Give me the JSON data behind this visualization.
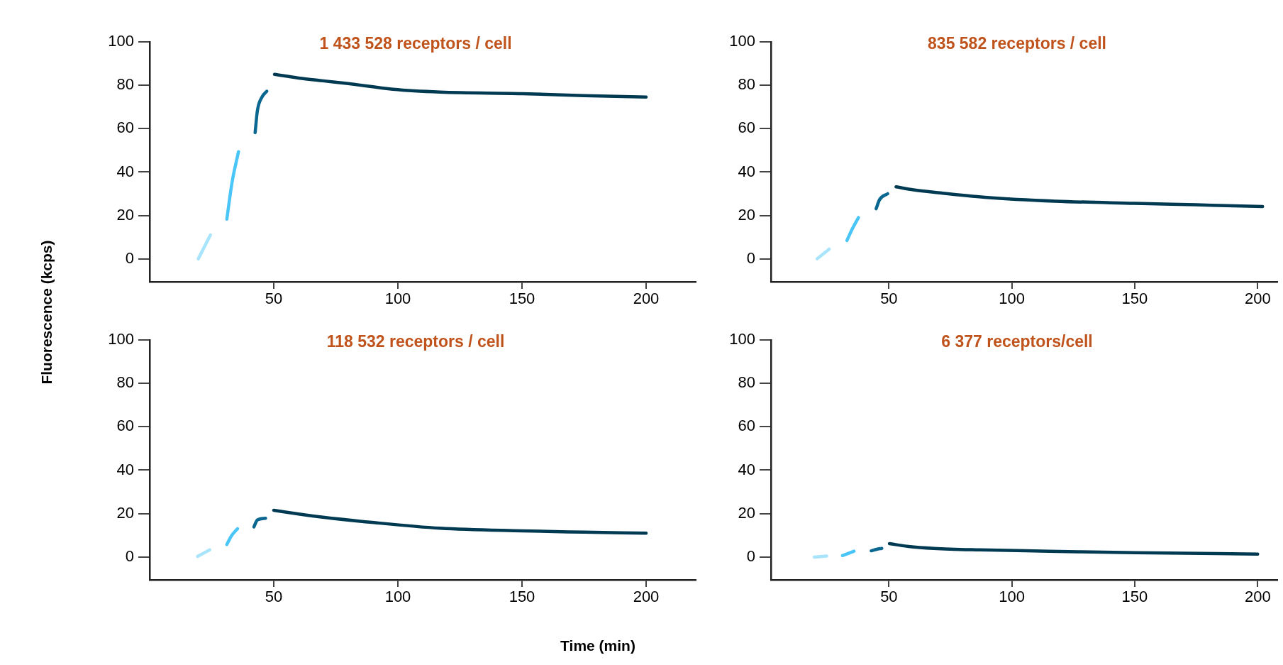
{
  "chart_data": [
    {
      "type": "line",
      "title": "1 433 528 receptors / cell",
      "ylabel": "Fluorescence (kcps)",
      "marker": "none",
      "grid": false,
      "legend": false,
      "xlim": [
        0,
        220
      ],
      "xticks": [
        50,
        100,
        150,
        200
      ],
      "ylim": [
        -10.6,
        100
      ],
      "yticks": [
        0,
        20,
        40,
        60,
        80,
        100
      ],
      "series": [
        {
          "color": "#a8e4fb",
          "x": [
            19.6,
            24.5
          ],
          "values": [
            0,
            11
          ]
        },
        {
          "color": "#4ac5f8",
          "x": [
            31.1,
            33.2,
            35.8
          ],
          "values": [
            18.3,
            35.3,
            49.4
          ]
        },
        {
          "color": "#0a6890",
          "x": [
            42.5,
            43.4,
            45.3,
            47.2
          ],
          "values": [
            58.2,
            68.3,
            74.7,
            77.3
          ]
        },
        {
          "color": "#003a52",
          "x": [
            50.3,
            60,
            69.8,
            80,
            98,
            117,
            150,
            175,
            200
          ],
          "values": [
            85.1,
            83.4,
            82.1,
            80.8,
            78.2,
            76.9,
            76.2,
            75.3,
            74.6
          ]
        }
      ]
    },
    {
      "type": "line",
      "title": "835 582 receptors / cell",
      "marker": "none",
      "grid": false,
      "legend": false,
      "xlim": [
        2,
        208
      ],
      "xticks": [
        50,
        100,
        150,
        200
      ],
      "ylim": [
        -10.6,
        100
      ],
      "yticks": [
        0,
        20,
        40,
        60,
        80,
        100
      ],
      "series": [
        {
          "color": "#a8e4fb",
          "x": [
            20.8,
            25.7
          ],
          "values": [
            0,
            4.5
          ]
        },
        {
          "color": "#4ac5f8",
          "x": [
            32.9,
            35.2,
            37.6
          ],
          "values": [
            8.4,
            14,
            19
          ]
        },
        {
          "color": "#0a6890",
          "x": [
            44.8,
            46.2,
            49.5
          ],
          "values": [
            23.1,
            27.3,
            30
          ]
        },
        {
          "color": "#003a52",
          "x": [
            52.9,
            60,
            70,
            89,
            117.6,
            150,
            175,
            202
          ],
          "values": [
            33.2,
            31.8,
            30.5,
            28.4,
            26.6,
            25.6,
            24.9,
            24.1
          ]
        }
      ]
    },
    {
      "type": "line",
      "title": "118 532 receptors / cell",
      "xlabel": "Time (min)",
      "marker": "none",
      "grid": false,
      "legend": false,
      "xlim": [
        0,
        220
      ],
      "xticks": [
        50,
        100,
        150,
        200
      ],
      "ylim": [
        -10.6,
        100
      ],
      "yticks": [
        0,
        20,
        40,
        60,
        80,
        100
      ],
      "series": [
        {
          "color": "#a8e4fb",
          "x": [
            19.3,
            24.2
          ],
          "values": [
            0.2,
            3.2
          ]
        },
        {
          "color": "#4ac5f8",
          "x": [
            31.1,
            33,
            35.4
          ],
          "values": [
            5.7,
            9.8,
            13
          ]
        },
        {
          "color": "#0a6890",
          "x": [
            42,
            43.4,
            46.7
          ],
          "values": [
            13.8,
            17,
            17.8
          ]
        },
        {
          "color": "#003a52",
          "x": [
            50,
            60,
            69.8,
            88.7,
            117,
            150,
            175,
            200
          ],
          "values": [
            21.5,
            19.8,
            18.3,
            16,
            13.2,
            12,
            11.4,
            10.9
          ]
        }
      ]
    },
    {
      "type": "line",
      "title": "6 377 receptors/cell",
      "marker": "none",
      "grid": false,
      "legend": false,
      "xlim": [
        2,
        208
      ],
      "xticks": [
        50,
        100,
        150,
        200
      ],
      "ylim": [
        -10.6,
        100
      ],
      "yticks": [
        0,
        20,
        40,
        60,
        80,
        100
      ],
      "series": [
        {
          "color": "#a8e4fb",
          "x": [
            19.6,
            24.7
          ],
          "values": [
            -0.1,
            0.4
          ]
        },
        {
          "color": "#4ac5f8",
          "x": [
            31.1,
            35.8
          ],
          "values": [
            0.6,
            2.6
          ]
        },
        {
          "color": "#0a6890",
          "x": [
            42.8,
            45,
            47.1
          ],
          "values": [
            2.8,
            3.5,
            3.9
          ]
        },
        {
          "color": "#003a52",
          "x": [
            50.2,
            58,
            68.3,
            87.1,
            115.3,
            150,
            200
          ],
          "values": [
            6.1,
            4.8,
            3.9,
            3.2,
            2.6,
            1.9,
            1.3
          ]
        }
      ]
    }
  ]
}
